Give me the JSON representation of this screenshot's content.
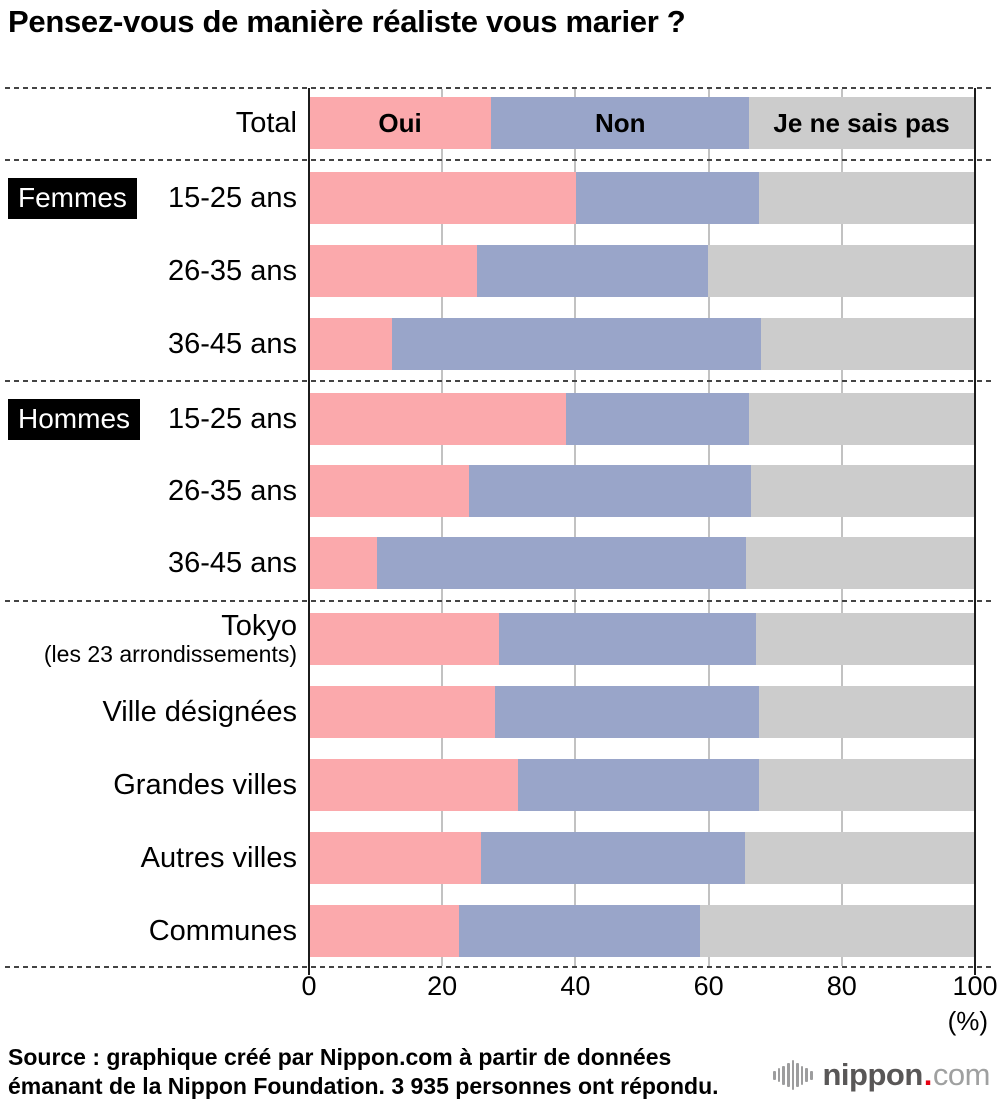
{
  "title": "Pensez-vous de manière réaliste vous marier ?",
  "chart_data": {
    "type": "bar",
    "stacked": true,
    "orientation": "horizontal",
    "series_names": [
      "Oui",
      "Non",
      "Je ne sais pas"
    ],
    "colors": [
      "#FBA9AC",
      "#99A5C9",
      "#CCCCCC"
    ],
    "xlim": [
      0,
      100
    ],
    "x_ticks": [
      "0",
      "20",
      "40",
      "60",
      "80",
      "100"
    ],
    "unit_label": "(%)",
    "grid": true,
    "legend_position": "inside-first-bar",
    "rows": [
      {
        "label": "Total",
        "values": [
          27.4,
          38.8,
          33.8
        ]
      },
      {
        "group": "Femmes",
        "label": "15-25 ans",
        "values": [
          40.2,
          27.5,
          32.3
        ]
      },
      {
        "label": "26-35 ans",
        "values": [
          25.3,
          34.7,
          40.0
        ]
      },
      {
        "label": "36-45 ans",
        "values": [
          12.5,
          55.5,
          32.0
        ]
      },
      {
        "group": "Hommes",
        "label": "15-25 ans",
        "values": [
          38.7,
          27.5,
          33.8
        ]
      },
      {
        "label": "26-35 ans",
        "values": [
          24.1,
          42.4,
          33.5
        ]
      },
      {
        "label": "36-45 ans",
        "values": [
          10.3,
          55.4,
          34.3
        ]
      },
      {
        "label": "Tokyo",
        "sublabel": "(les 23 arrondissements)",
        "values": [
          28.6,
          38.6,
          32.8
        ]
      },
      {
        "label": "Ville désignées",
        "values": [
          27.9,
          39.8,
          32.3
        ]
      },
      {
        "label": "Grandes villes",
        "values": [
          31.4,
          36.3,
          32.3
        ]
      },
      {
        "label": "Autres villes",
        "values": [
          25.9,
          39.6,
          34.5
        ]
      },
      {
        "label": "Communes",
        "values": [
          22.5,
          36.3,
          41.2
        ]
      }
    ]
  },
  "source": {
    "line1": "Source : graphique créé par Nippon.com à partir de données",
    "line2": "émanant de la Nippon Foundation. 3 935 personnes ont répondu."
  },
  "logo": {
    "name": "nippon",
    "dot": ".",
    "tld": "com"
  }
}
